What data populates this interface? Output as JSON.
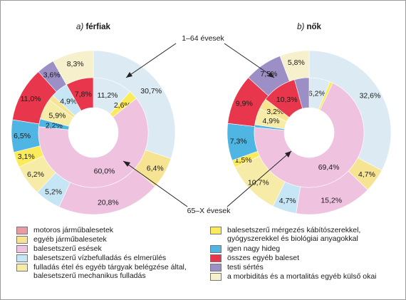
{
  "chart_data": {
    "type": "pie",
    "colors": {
      "motoros": "#e99aa5",
      "egyeb_jarmu": "#f6e492",
      "esesek": "#efc2e0",
      "vizbe": "#c7e6f5",
      "fulladas": "#f6eca8",
      "mergezes": "#fbeb5a",
      "hideg": "#4fb5e2",
      "egyeb_baleset": "#e8374c",
      "testi": "#9b8fc5",
      "kulso": "#f7f0cd",
      "rest": "#dcebf3"
    },
    "charts": [
      {
        "name": "ferfiak",
        "title_letter": "a)",
        "title_word": "férfiak",
        "outer": [
          {
            "key": "rest",
            "value": 30.7,
            "label": "30,7%"
          },
          {
            "key": "egyeb_jarmu",
            "value": 6.4,
            "label": "6,4%"
          },
          {
            "key": "esesek",
            "value": 20.8,
            "label": "20,8%"
          },
          {
            "key": "vizbe",
            "value": 5.2,
            "label": "5,2%"
          },
          {
            "key": "fulladas",
            "value": 6.2,
            "label": "6,2%"
          },
          {
            "key": "mergezes",
            "value": 3.1,
            "label": "3,1%"
          },
          {
            "key": "hideg",
            "value": 6.5,
            "label": "6,5%"
          },
          {
            "key": "egyeb_baleset",
            "value": 11.0,
            "label": "11,0%"
          },
          {
            "key": "testi",
            "value": 3.6,
            "label": "3,6%"
          },
          {
            "key": "kulso",
            "value": 8.3,
            "label": "8,3%"
          }
        ],
        "inner": [
          {
            "key": "rest",
            "value": 11.2,
            "label": "11,2%"
          },
          {
            "key": "mergezes",
            "value": 2.6,
            "label": "2,6%"
          },
          {
            "key": "esesek",
            "value": 60.0,
            "label": "60,0%"
          },
          {
            "key": "hideg",
            "value": 2.2,
            "label": "2,2%"
          },
          {
            "key": "fulladas",
            "value": 5.9,
            "label": "5,9%"
          },
          {
            "key": "egyeb_jarmu",
            "value": 1.6,
            "label": ""
          },
          {
            "key": "vizbe",
            "value": 4.9,
            "label": "4,9%"
          },
          {
            "key": "egyeb_baleset",
            "value": 7.8,
            "label": "7,8%"
          }
        ]
      },
      {
        "name": "nok",
        "title_letter": "b)",
        "title_word": "nők",
        "outer": [
          {
            "key": "rest",
            "value": 32.6,
            "label": "32,6%"
          },
          {
            "key": "egyeb_jarmu",
            "value": 4.7,
            "label": "4,7%"
          },
          {
            "key": "esesek",
            "value": 15.2,
            "label": "15,2%"
          },
          {
            "key": "vizbe",
            "value": 4.7,
            "label": "4,7%"
          },
          {
            "key": "fulladas",
            "value": 10.7,
            "label": "10,7%"
          },
          {
            "key": "mergezes",
            "value": 1.5,
            "label": "1,5%"
          },
          {
            "key": "hideg",
            "value": 7.3,
            "label": "7,3%"
          },
          {
            "key": "egyeb_baleset",
            "value": 9.9,
            "label": "9,9%"
          },
          {
            "key": "testi",
            "value": 7.5,
            "label": "7,5%"
          },
          {
            "key": "kulso",
            "value": 5.8,
            "label": "5,8%"
          }
        ],
        "inner": [
          {
            "key": "rest",
            "value": 6.2,
            "label": "6,2%"
          },
          {
            "key": "mergezes",
            "value": 0.9,
            "label": ""
          },
          {
            "key": "esesek",
            "value": 69.4,
            "label": "69,4%"
          },
          {
            "key": "hideg",
            "value": 0.8,
            "label": ""
          },
          {
            "key": "fulladas",
            "value": 4.9,
            "label": "4,9%"
          },
          {
            "key": "egyeb_jarmu",
            "value": 3.2,
            "label": "3,2%"
          },
          {
            "key": "egyeb_baleset",
            "value": 10.3,
            "label": "10,3%"
          },
          {
            "key": "testi",
            "value": 4.3,
            "label": ""
          }
        ]
      }
    ],
    "annotation_top": "1–64 évesek",
    "annotation_bottom": "65–X évesek",
    "legend": [
      {
        "key": "motoros",
        "label": "motoros járműbalesetek"
      },
      {
        "key": "egyeb_jarmu",
        "label": "egyéb járműbalesetek"
      },
      {
        "key": "esesek",
        "label": "balesetszerű esések"
      },
      {
        "key": "vizbe",
        "label": "balesetszerű vízbefulladás és elmerülés"
      },
      {
        "key": "fulladas",
        "label": "fulladás étel és egyéb tárgyak belégzése által,\nbalesetszerű mechanikus fulladás"
      },
      {
        "key": "mergezes",
        "label": "balesetszerű mérgezés kábítószerekkel,\ngyógyszerekkel és biológiai anyagokkal"
      },
      {
        "key": "hideg",
        "label": "igen nagy hideg"
      },
      {
        "key": "egyeb_baleset",
        "label": "összes egyéb baleset"
      },
      {
        "key": "testi",
        "label": "testi sértés"
      },
      {
        "key": "kulso",
        "label": "a morbiditás és a mortalitás egyéb külső okai"
      }
    ]
  }
}
